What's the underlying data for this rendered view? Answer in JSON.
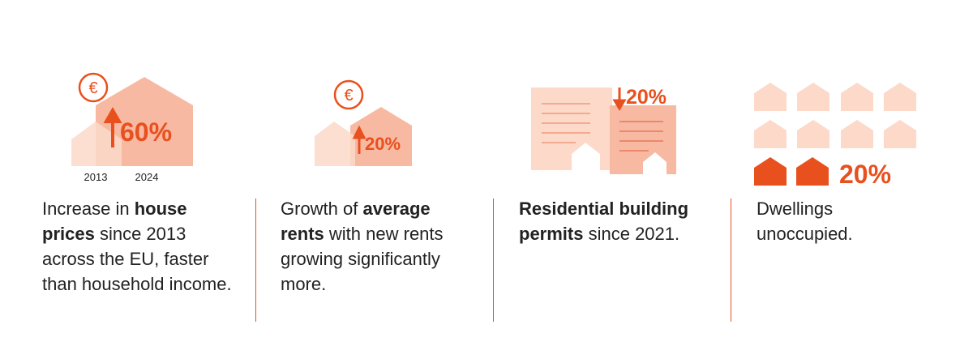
{
  "panels": [
    {
      "stat": "60%",
      "years": [
        "2013",
        "2024"
      ],
      "description": [
        {
          "text": "Increase in ",
          "bold": false
        },
        {
          "text": "house prices",
          "bold": true
        },
        {
          "text": " since 2013 across the EU, faster than household income.",
          "bold": false
        }
      ]
    },
    {
      "stat": "20%",
      "description": [
        {
          "text": "Growth of ",
          "bold": false
        },
        {
          "text": "average rents",
          "bold": true
        },
        {
          "text": " with new rents growing significantly more.",
          "bold": false
        }
      ]
    },
    {
      "stat": "20%",
      "description": [
        {
          "text": "Residential building permits",
          "bold": true
        },
        {
          "text": " since 2021.",
          "bold": false
        }
      ]
    },
    {
      "stat": "20%",
      "description": [
        {
          "text": "Dwellings unoccupied.",
          "bold": false
        }
      ]
    }
  ]
}
